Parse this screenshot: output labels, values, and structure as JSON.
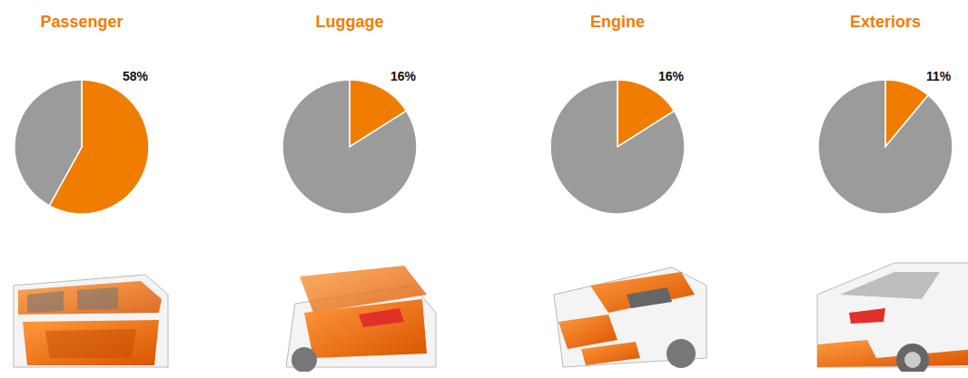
{
  "chart_data": [
    {
      "type": "pie",
      "title": "Passenger",
      "values": [
        58,
        42
      ],
      "value_labels": [
        "58%",
        null
      ],
      "colors": [
        "#f07d00",
        "#9b9b9b"
      ],
      "data_labels": true
    },
    {
      "type": "pie",
      "title": "Luggage",
      "values": [
        16,
        84
      ],
      "value_labels": [
        "16%",
        null
      ],
      "colors": [
        "#f07d00",
        "#9b9b9b"
      ],
      "data_labels": true
    },
    {
      "type": "pie",
      "title": "Engine",
      "values": [
        16,
        84
      ],
      "value_labels": [
        "16%",
        null
      ],
      "colors": [
        "#f07d00",
        "#9b9b9b"
      ],
      "data_labels": true
    },
    {
      "type": "pie",
      "title": "Exteriors",
      "values": [
        11,
        89
      ],
      "value_labels": [
        "11%",
        null
      ],
      "colors": [
        "#f07d00",
        "#9b9b9b"
      ],
      "data_labels": true
    }
  ]
}
